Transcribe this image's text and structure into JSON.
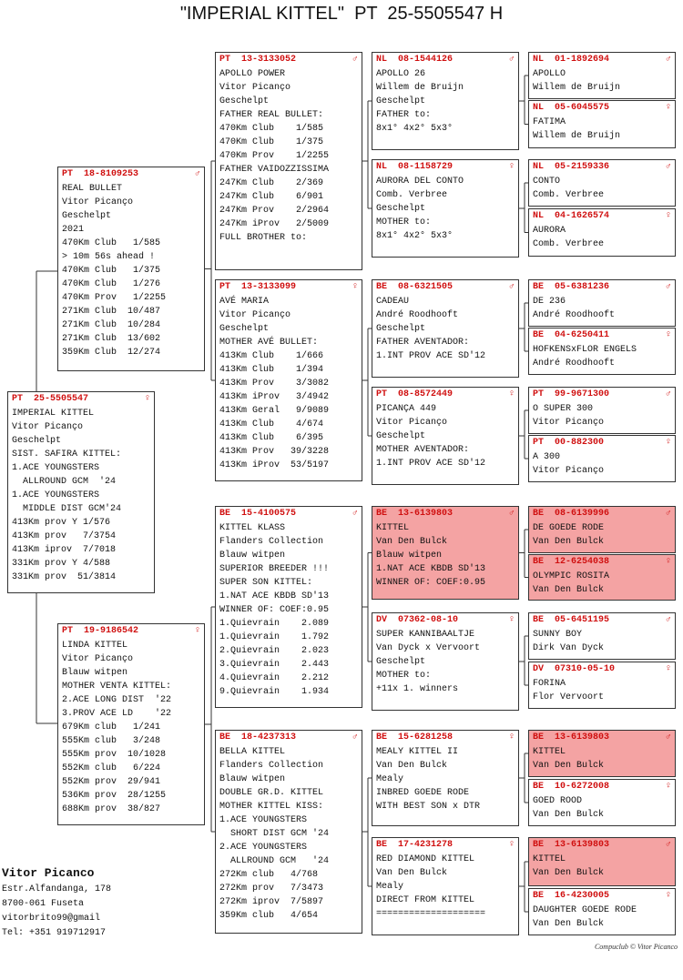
{
  "title": "\"IMPERIAL KITTEL\"  PT  25-5505547 H",
  "boxes": [
    {
      "ring": "PT  25-5505547",
      "sex": "♀",
      "lines": [
        "IMPERIAL KITTEL",
        "Vitor Picanço",
        "Geschelpt",
        "SIST. SAFIRA KITTEL:",
        "1.ACE YOUNGSTERS",
        "  ALLROUND GCM  '24",
        "1.ACE YOUNGSTERS",
        "  MIDDLE DIST GCM'24",
        "413Km prov Y 1/576",
        "413Km prov   7/3754",
        "413Km iprov  7/7018",
        "331Km prov Y 4/588",
        "331Km prov  51/3814"
      ]
    },
    {
      "ring": "PT  18-8109253",
      "sex": "♂",
      "lines": [
        "REAL BULLET",
        "Vitor Picanço",
        "Geschelpt",
        "2021",
        "470Km Club   1/585",
        "> 10m 56s ahead !",
        "470Km Club   1/375",
        "470Km Club   1/276",
        "470Km Prov   1/2255",
        "271Km Club  10/487",
        "271Km Club  10/284",
        "271Km Club  13/602",
        "359Km Club  12/274"
      ]
    },
    {
      "ring": "PT  19-9186542",
      "sex": "♀",
      "lines": [
        "LINDA KITTEL",
        "Vitor Picanço",
        "Blauw witpen",
        "MOTHER VENTA KITTEL:",
        "2.ACE LONG DIST  '22",
        "3.PROV ACE LD    '22",
        "679Km club   1/241",
        "555Km club   3/248",
        "555Km prov  10/1028",
        "552Km club   6/224",
        "552Km prov  29/941",
        "536Km prov  28/1255",
        "688Km prov  38/827"
      ]
    },
    {
      "ring": "PT  13-3133052",
      "sex": "♂",
      "lines": [
        "APOLLO POWER",
        "Vitor Picanço",
        "Geschelpt",
        "FATHER REAL BULLET:",
        "470Km Club    1/585",
        "470Km Club    1/375",
        "470Km Prov    1/2255",
        "FATHER VAIDOZZISSIMA",
        "247Km Club    2/369",
        "247Km Club    6/901",
        "247Km Prov    2/2964",
        "247Km iProv   2/5009",
        "FULL BROTHER to:"
      ]
    },
    {
      "ring": "PT  13-3133099",
      "sex": "♀",
      "lines": [
        "AVÉ MARIA",
        "Vitor Picanço",
        "Geschelpt",
        "MOTHER AVÉ BULLET:",
        "413Km Club    1/666",
        "413Km Club    1/394",
        "413Km Prov    3/3082",
        "413Km iProv   3/4942",
        "413Km Geral   9/9089",
        "413Km Club    4/674",
        "413Km Club    6/395",
        "413Km Prov   39/3228",
        "413Km iProv  53/5197"
      ]
    },
    {
      "ring": "BE  15-4100575",
      "sex": "♂",
      "lines": [
        "KITTEL KLASS",
        "Flanders Collection",
        "Blauw witpen",
        "SUPERIOR BREEDER !!!",
        "SUPER SON KITTEL:",
        "1.NAT ACE KBDB SD'13",
        "WINNER OF: COEF:0.95",
        "1.Quievrain    2.089",
        "1.Quievrain    1.792",
        "2.Quievrain    2.023",
        "3.Quievrain    2.443",
        "4.Quievrain    2.212",
        "9.Quievrain    1.934"
      ]
    },
    {
      "ring": "BE  18-4237313",
      "sex": "♂",
      "lines": [
        "BELLA KITTEL",
        "Flanders Collection",
        "Blauw witpen",
        "DOUBLE GR.D. KITTEL",
        "MOTHER KITTEL KISS:",
        "1.ACE YOUNGSTERS",
        "  SHORT DIST GCM '24",
        "2.ACE YOUNGSTERS",
        "  ALLROUND GCM   '24",
        "272Km club   4/768",
        "272Km prov   7/3473",
        "272Km iprov  7/5897",
        "359Km club   4/654"
      ]
    },
    {
      "ring": "NL  08-1544126",
      "sex": "♂",
      "lines": [
        "APOLLO 26",
        "Willem de Bruijn",
        "Geschelpt",
        "FATHER to:",
        "8x1° 4x2° 5x3°"
      ]
    },
    {
      "ring": "NL  08-1158729",
      "sex": "♀",
      "lines": [
        "AURORA DEL CONTO",
        "Comb. Verbree",
        "Geschelpt",
        "MOTHER to:",
        "8x1° 4x2° 5x3°"
      ]
    },
    {
      "ring": "BE  08-6321505",
      "sex": "♂",
      "lines": [
        "CADEAU",
        "André Roodhooft",
        "Geschelpt",
        "FATHER AVENTADOR:",
        "1.INT PROV ACE SD'12"
      ]
    },
    {
      "ring": "PT  08-8572449",
      "sex": "♀",
      "lines": [
        "PICANÇA 449",
        "Vitor Picanço",
        "Geschelpt",
        "MOTHER AVENTADOR:",
        "1.INT PROV ACE SD'12"
      ]
    },
    {
      "ring": "BE  13-6139803",
      "sex": "♂",
      "highlight": true,
      "lines": [
        "KITTEL",
        "Van Den Bulck",
        "Blauw witpen",
        "1.NAT ACE KBDB SD'13",
        "WINNER OF: COEF:0.95"
      ]
    },
    {
      "ring": "DV  07362-08-10",
      "sex": "♀",
      "lines": [
        "SUPER KANNIBAALTJE",
        "Van Dyck x Vervoort",
        "Geschelpt",
        "MOTHER to:",
        "+11x 1. winners"
      ]
    },
    {
      "ring": "BE  15-6281258",
      "sex": "♀",
      "lines": [
        "MEALY KITTEL II",
        "Van Den Bulck",
        "Mealy",
        "INBRED GOEDE RODE",
        "WITH BEST SON x DTR"
      ]
    },
    {
      "ring": "BE  17-4231278",
      "sex": "♀",
      "lines": [
        "RED DIAMOND KITTEL",
        "Van Den Bulck",
        "Mealy",
        "DIRECT FROM KITTEL",
        "===================="
      ]
    },
    {
      "ring": "NL  01-1892694",
      "sex": "♂",
      "lines": [
        "APOLLO",
        "Willem de Bruijn"
      ]
    },
    {
      "ring": "NL  05-6045575",
      "sex": "♀",
      "lines": [
        "FATIMA",
        "Willem de Bruijn"
      ]
    },
    {
      "ring": "NL  05-2159336",
      "sex": "♂",
      "lines": [
        "CONTO",
        "Comb. Verbree"
      ]
    },
    {
      "ring": "NL  04-1626574",
      "sex": "♀",
      "lines": [
        "AURORA",
        "Comb. Verbree"
      ]
    },
    {
      "ring": "BE  05-6381236",
      "sex": "♂",
      "lines": [
        "DE 236",
        "André Roodhooft"
      ]
    },
    {
      "ring": "BE  04-6250411",
      "sex": "♀",
      "lines": [
        "HOFKENSxFLOR ENGELS",
        "André Roodhooft"
      ]
    },
    {
      "ring": "PT  99-9671300",
      "sex": "♂",
      "lines": [
        "O SUPER 300",
        "Vitor Picanço"
      ]
    },
    {
      "ring": "PT  00-882300",
      "sex": "♀",
      "lines": [
        "A 300",
        "Vitor Picanço"
      ]
    },
    {
      "ring": "BE  08-6139996",
      "sex": "♂",
      "highlight": true,
      "lines": [
        "DE GOEDE RODE",
        "Van Den Bulck"
      ]
    },
    {
      "ring": "BE  12-6254038",
      "sex": "♀",
      "highlight": true,
      "lines": [
        "OLYMPIC ROSITA",
        "Van Den Bulck"
      ]
    },
    {
      "ring": "BE  05-6451195",
      "sex": "♂",
      "lines": [
        "SUNNY BOY",
        "Dirk Van Dyck"
      ]
    },
    {
      "ring": "DV  07310-05-10",
      "sex": "♀",
      "lines": [
        "FORINA",
        "Flor Vervoort"
      ]
    },
    {
      "ring": "BE  13-6139803",
      "sex": "♂",
      "highlight": true,
      "lines": [
        "KITTEL",
        "Van Den Bulck"
      ]
    },
    {
      "ring": "BE  10-6272008",
      "sex": "♀",
      "lines": [
        "GOED ROOD",
        "Van Den Bulck"
      ]
    },
    {
      "ring": "BE  13-6139803",
      "sex": "♂",
      "highlight": true,
      "lines": [
        "KITTEL",
        "Van Den Bulck"
      ]
    },
    {
      "ring": "BE  16-4230005",
      "sex": "♀",
      "lines": [
        "DAUGHTER GOEDE RODE",
        "Van Den Bulck"
      ]
    }
  ],
  "breeder": {
    "name": "Vitor Picanco",
    "lines": [
      "Estr.Alfandanga, 178",
      "8700-061 Fuseta",
      "vitorbrito99@gmail",
      "Tel: +351 919712917"
    ]
  },
  "footer": "Compuclub © Vitor Picanco"
}
